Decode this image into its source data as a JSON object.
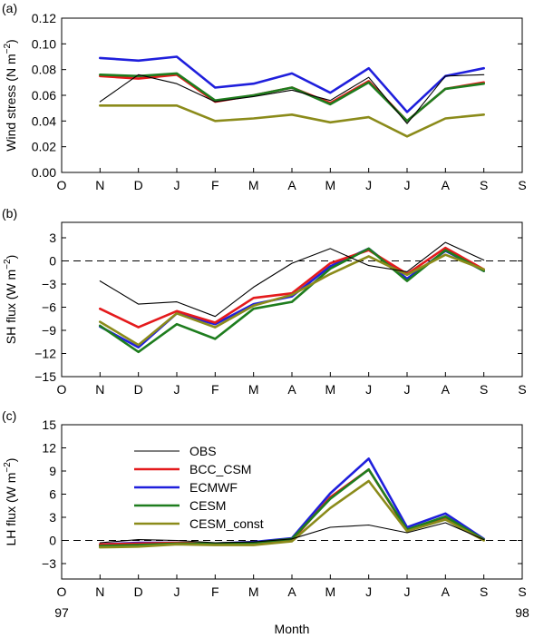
{
  "colors": {
    "OBS": "#000000",
    "BCC_CSM": "#e41a1c",
    "ECMWF": "#1f1fdc",
    "CESM": "#1e7d1e",
    "CESM_const": "#8b8b1a",
    "axis": "#000000",
    "zero_line": "#000000"
  },
  "months": [
    "O",
    "N",
    "D",
    "J",
    "F",
    "M",
    "A",
    "M",
    "J",
    "J",
    "A",
    "S",
    "S"
  ],
  "xlabel": "Month",
  "year_labels": {
    "start": "97",
    "end": "98"
  },
  "chart_data": [
    {
      "panel": "(a)",
      "type": "line",
      "ylabel_text": "Wind stress (N m",
      "ylabel_unit_exp": "−2",
      "ylabel_close": ")",
      "ylim": [
        0.0,
        0.12
      ],
      "yticks": [
        "0.00",
        "0.02",
        "0.04",
        "0.06",
        "0.08",
        "0.10",
        "0.12"
      ],
      "ytick_values": [
        0.0,
        0.02,
        0.04,
        0.06,
        0.08,
        0.1,
        0.12
      ],
      "zero_line": false,
      "x": [
        1,
        2,
        3,
        4,
        5,
        6,
        7,
        8,
        9,
        10,
        11
      ],
      "series": [
        {
          "name": "OBS",
          "values": [
            0.055,
            0.076,
            0.069,
            0.055,
            0.059,
            0.064,
            0.056,
            0.074,
            0.038,
            0.075,
            0.076
          ]
        },
        {
          "name": "BCC_CSM",
          "values": [
            0.075,
            0.073,
            0.076,
            0.055,
            0.06,
            0.066,
            0.054,
            0.071,
            0.04,
            0.065,
            0.07
          ]
        },
        {
          "name": "ECMWF",
          "values": [
            0.089,
            0.087,
            0.09,
            0.066,
            0.069,
            0.077,
            0.062,
            0.081,
            0.047,
            0.075,
            0.081
          ]
        },
        {
          "name": "CESM",
          "values": [
            0.076,
            0.075,
            0.077,
            0.056,
            0.06,
            0.066,
            0.053,
            0.07,
            0.04,
            0.065,
            0.069
          ]
        },
        {
          "name": "CESM_const",
          "values": [
            0.052,
            0.052,
            0.052,
            0.04,
            0.042,
            0.045,
            0.039,
            0.043,
            0.028,
            0.042,
            0.045
          ]
        }
      ]
    },
    {
      "panel": "(b)",
      "type": "line",
      "ylabel_text": "SH flux (W m",
      "ylabel_unit_exp": "−2",
      "ylabel_close": ")",
      "ylim": [
        -15,
        5
      ],
      "yticks": [
        "−15",
        "−12",
        "−9",
        "−6",
        "−3",
        "0",
        "3"
      ],
      "ytick_values": [
        -15,
        -12,
        -9,
        -6,
        -3,
        0,
        3
      ],
      "zero_line": true,
      "x": [
        1,
        2,
        3,
        4,
        5,
        6,
        7,
        8,
        9,
        10,
        11
      ],
      "series": [
        {
          "name": "OBS",
          "values": [
            -2.6,
            -5.6,
            -5.3,
            -7.2,
            -3.4,
            -0.3,
            1.6,
            -0.6,
            -1.4,
            2.4,
            0.1
          ]
        },
        {
          "name": "BCC_CSM",
          "values": [
            -6.2,
            -8.6,
            -6.5,
            -8.0,
            -4.8,
            -4.2,
            -0.3,
            1.4,
            -1.7,
            1.7,
            -1.1
          ]
        },
        {
          "name": "ECMWF",
          "values": [
            -8.5,
            -11.2,
            -6.8,
            -8.2,
            -5.6,
            -4.6,
            -0.7,
            1.6,
            -2.3,
            1.3,
            -1.3
          ]
        },
        {
          "name": "CESM",
          "values": [
            -8.4,
            -11.8,
            -8.2,
            -10.1,
            -6.2,
            -5.3,
            -1.0,
            1.6,
            -2.6,
            1.4,
            -1.3
          ]
        },
        {
          "name": "CESM_const",
          "values": [
            -7.9,
            -10.9,
            -6.8,
            -8.6,
            -5.8,
            -4.4,
            -1.7,
            0.6,
            -1.8,
            0.8,
            -1.1
          ]
        }
      ]
    },
    {
      "panel": "(c)",
      "type": "line",
      "ylabel_text": "LH flux (W m",
      "ylabel_unit_exp": "−2",
      "ylabel_close": ")",
      "ylim": [
        -5,
        15
      ],
      "yticks": [
        "−3",
        "0",
        "3",
        "6",
        "9",
        "12",
        "15"
      ],
      "ytick_values": [
        -3,
        0,
        3,
        6,
        9,
        12,
        15
      ],
      "zero_line": true,
      "legend": {
        "placement": "upper-left",
        "entries": [
          "OBS",
          "BCC_CSM",
          "ECMWF",
          "CESM",
          "CESM_const"
        ]
      },
      "x": [
        1,
        2,
        3,
        4,
        5,
        6,
        7,
        8,
        9,
        10,
        11
      ],
      "series": [
        {
          "name": "OBS",
          "values": [
            -0.3,
            0.1,
            0.0,
            -0.3,
            -0.2,
            0.2,
            1.7,
            2.0,
            1.0,
            2.3,
            0.1
          ]
        },
        {
          "name": "BCC_CSM",
          "values": [
            -0.5,
            -0.4,
            -0.3,
            -0.4,
            -0.3,
            0.0,
            5.6,
            9.2,
            1.3,
            3.0,
            0.1
          ]
        },
        {
          "name": "ECMWF",
          "values": [
            -0.5,
            -0.3,
            -0.3,
            -0.4,
            -0.2,
            0.3,
            6.1,
            10.6,
            1.7,
            3.5,
            0.2
          ]
        },
        {
          "name": "CESM",
          "values": [
            -0.7,
            -0.6,
            -0.4,
            -0.4,
            -0.3,
            0.2,
            5.4,
            9.2,
            1.4,
            3.1,
            0.1
          ]
        },
        {
          "name": "CESM_const",
          "values": [
            -0.9,
            -0.8,
            -0.5,
            -0.6,
            -0.6,
            -0.1,
            4.2,
            7.7,
            1.2,
            2.7,
            0.0
          ]
        }
      ]
    }
  ]
}
